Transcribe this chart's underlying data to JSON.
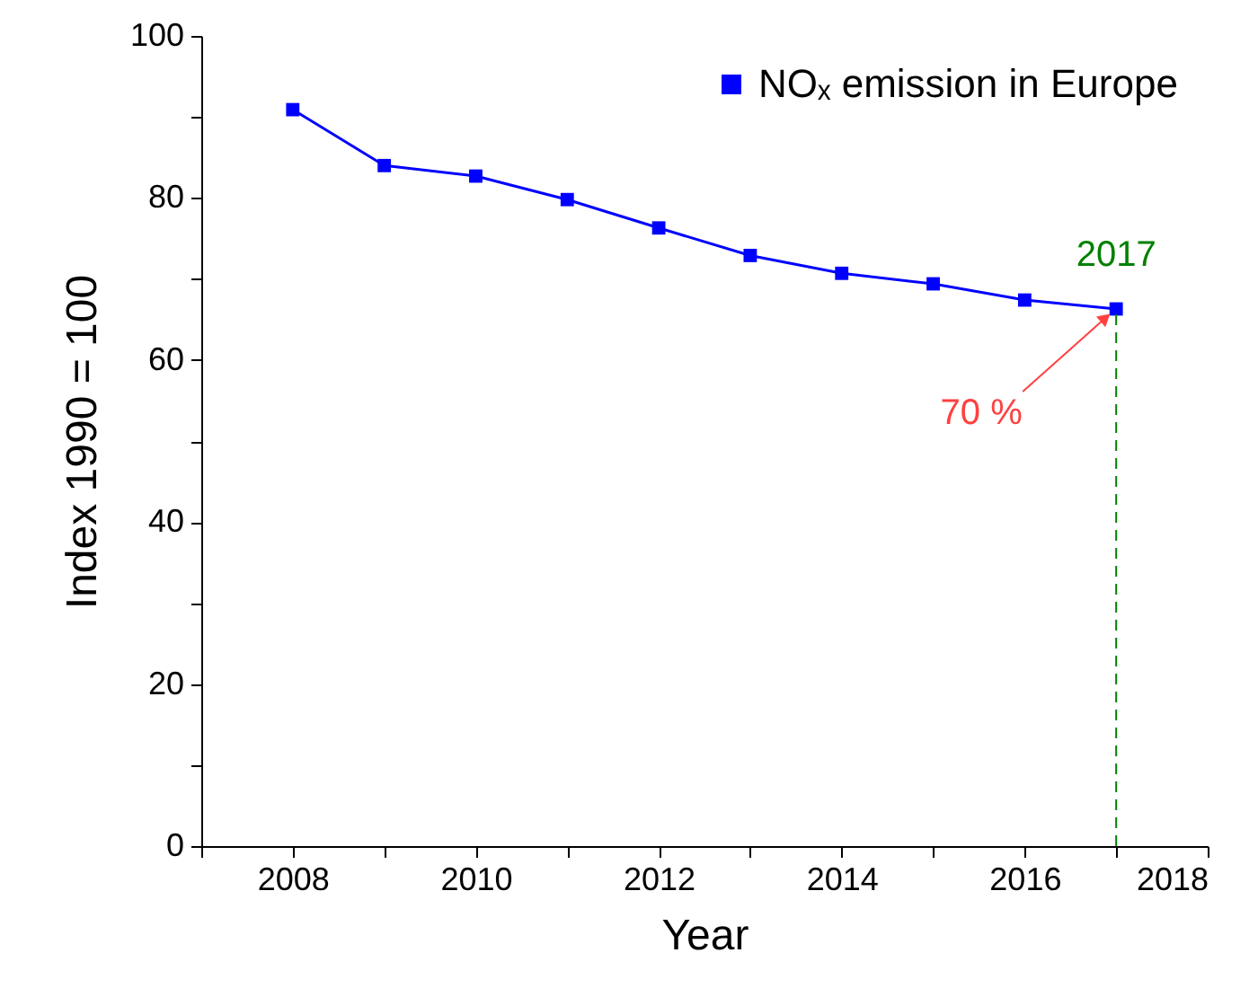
{
  "chart_data": {
    "type": "line",
    "xlabel": "Year",
    "ylabel": "Index 1990 = 100",
    "x": [
      2008,
      2009,
      2010,
      2011,
      2012,
      2013,
      2014,
      2015,
      2016,
      2017
    ],
    "series": [
      {
        "name": "NOₓ emission in Europe",
        "color": "#0000ff",
        "values": [
          90.9,
          84.0,
          82.7,
          79.8,
          76.3,
          72.9,
          70.7,
          69.4,
          67.4,
          66.3
        ]
      }
    ],
    "xlim": [
      2007,
      2018
    ],
    "xticks": [
      {
        "value": 2007,
        "label": null
      },
      2008,
      {
        "value": 2009,
        "label": null
      },
      2010,
      {
        "value": 2011,
        "label": null
      },
      2012,
      {
        "value": 2013,
        "label": null
      },
      2014,
      {
        "value": 2015,
        "label": null
      },
      2016,
      {
        "value": 2017,
        "label": null
      },
      2018
    ],
    "ylim": [
      0,
      100
    ],
    "yticks": [
      0,
      {
        "value": 10,
        "label": null
      },
      20,
      {
        "value": 30,
        "label": null
      },
      40,
      {
        "value": 50,
        "label": null
      },
      60,
      {
        "value": 70,
        "label": null
      },
      80,
      {
        "value": 90,
        "label": null
      },
      100
    ],
    "ref_lines": [
      {
        "axis": "x",
        "value": 2017,
        "label": "2017",
        "color": "#008000",
        "line_style": "dashed"
      }
    ],
    "annotations": [
      {
        "text": "70 %",
        "x": 2017,
        "y": 66.3
      }
    ],
    "marker": "square",
    "line_style": "solid",
    "legend": "top right",
    "grid": false
  }
}
